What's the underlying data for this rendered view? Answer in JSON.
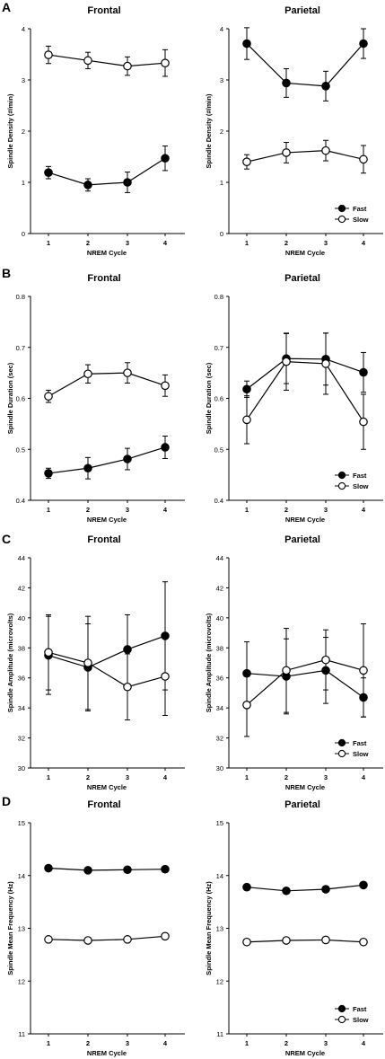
{
  "chart_data": [
    {
      "panel": "A",
      "title": "Frontal",
      "type": "line",
      "xlabel": "NREM Cycle",
      "ylabel": "Spindle Density (#/min)",
      "x": [
        "1",
        "2",
        "3",
        "4"
      ],
      "ylim": [
        0,
        4
      ],
      "yticks": [
        "0",
        "1",
        "2",
        "3",
        "4"
      ],
      "series": [
        {
          "name": "Fast",
          "marker": "filled",
          "values": [
            1.19,
            0.95,
            1.0,
            1.47
          ],
          "errors": [
            0.12,
            0.12,
            0.2,
            0.24
          ]
        },
        {
          "name": "Slow",
          "marker": "open",
          "values": [
            3.49,
            3.38,
            3.27,
            3.33
          ],
          "errors": [
            0.17,
            0.16,
            0.18,
            0.26
          ]
        }
      ]
    },
    {
      "panel": "A2",
      "title": "Parietal",
      "type": "line",
      "xlabel": "NREM Cycle",
      "ylabel": "Spindle Density (#/min)",
      "x": [
        "1",
        "2",
        "3",
        "4"
      ],
      "ylim": [
        0,
        4
      ],
      "yticks": [
        "0",
        "1",
        "2",
        "3",
        "4"
      ],
      "legend": "bottom-right",
      "series": [
        {
          "name": "Fast",
          "marker": "filled",
          "values": [
            3.71,
            2.94,
            2.88,
            3.71
          ],
          "errors": [
            0.31,
            0.28,
            0.29,
            0.29
          ]
        },
        {
          "name": "Slow",
          "marker": "open",
          "values": [
            1.4,
            1.58,
            1.62,
            1.45
          ],
          "errors": [
            0.14,
            0.2,
            0.2,
            0.27
          ]
        }
      ]
    },
    {
      "panel": "B",
      "title": "Frontal",
      "type": "line",
      "xlabel": "NREM Cycle",
      "ylabel": "Spindle Duration (sec)",
      "x": [
        "1",
        "2",
        "3",
        "4"
      ],
      "ylim": [
        0.4,
        0.8
      ],
      "yticks": [
        "0.4",
        "0.5",
        "0.6",
        "0.7",
        "0.8"
      ],
      "series": [
        {
          "name": "Fast",
          "marker": "filled",
          "values": [
            0.453,
            0.463,
            0.481,
            0.504
          ],
          "errors": [
            0.01,
            0.021,
            0.021,
            0.022
          ]
        },
        {
          "name": "Slow",
          "marker": "open",
          "values": [
            0.604,
            0.648,
            0.65,
            0.625
          ],
          "errors": [
            0.012,
            0.018,
            0.02,
            0.021
          ]
        }
      ]
    },
    {
      "panel": "B2",
      "title": "Parietal",
      "type": "line",
      "xlabel": "NREM Cycle",
      "ylabel": "Spindle Duration (sec)",
      "x": [
        "1",
        "2",
        "3",
        "4"
      ],
      "ylim": [
        0.4,
        0.8
      ],
      "yticks": [
        "0.4",
        "0.5",
        "0.6",
        "0.7",
        "0.8"
      ],
      "legend": "bottom-right",
      "series": [
        {
          "name": "Fast",
          "marker": "filled",
          "values": [
            0.618,
            0.678,
            0.677,
            0.651
          ],
          "errors": [
            0.016,
            0.049,
            0.051,
            0.039
          ]
        },
        {
          "name": "Slow",
          "marker": "open",
          "values": [
            0.558,
            0.672,
            0.668,
            0.554
          ],
          "errors": [
            0.047,
            0.056,
            0.06,
            0.054
          ]
        }
      ]
    },
    {
      "panel": "C",
      "title": "Frontal",
      "type": "line",
      "xlabel": "NREM Cycle",
      "ylabel": "Spindle Amplitude (microvolts)",
      "x": [
        "1",
        "2",
        "3",
        "4"
      ],
      "ylim": [
        30,
        44
      ],
      "yticks": [
        "30",
        "32",
        "34",
        "36",
        "38",
        "40",
        "42",
        "44"
      ],
      "series": [
        {
          "name": "Fast",
          "marker": "filled",
          "values": [
            37.5,
            36.7,
            37.9,
            38.8
          ],
          "errors": [
            2.6,
            2.9,
            2.3,
            3.6
          ]
        },
        {
          "name": "Slow",
          "marker": "open",
          "values": [
            37.7,
            37.0,
            35.4,
            36.1
          ],
          "errors": [
            2.5,
            3.1,
            2.2,
            2.6
          ]
        }
      ]
    },
    {
      "panel": "C2",
      "title": "Parietal",
      "type": "line",
      "xlabel": "NREM Cycle",
      "ylabel": "Spindle Amplitude (microvolts)",
      "x": [
        "1",
        "2",
        "3",
        "4"
      ],
      "ylim": [
        30,
        44
      ],
      "yticks": [
        "30",
        "32",
        "34",
        "36",
        "38",
        "40",
        "42",
        "44"
      ],
      "legend": "bottom-right",
      "series": [
        {
          "name": "Fast",
          "marker": "filled",
          "values": [
            36.3,
            36.1,
            36.5,
            34.7
          ],
          "errors": [
            2.1,
            2.5,
            2.2,
            1.3
          ]
        },
        {
          "name": "Slow",
          "marker": "open",
          "values": [
            34.2,
            36.5,
            37.2,
            36.5
          ],
          "errors": [
            2.1,
            2.8,
            2.0,
            3.1
          ]
        }
      ]
    },
    {
      "panel": "D",
      "title": "Frontal",
      "type": "line",
      "xlabel": "NREM Cycle",
      "ylabel": "Spindle Mean Frequency (Hz)",
      "x": [
        "1",
        "2",
        "3",
        "4"
      ],
      "ylim": [
        11,
        15
      ],
      "yticks": [
        "11",
        "12",
        "13",
        "14",
        "15"
      ],
      "series": [
        {
          "name": "Fast",
          "marker": "filled",
          "values": [
            14.14,
            14.1,
            14.11,
            14.12
          ],
          "errors": [
            0,
            0,
            0,
            0
          ]
        },
        {
          "name": "Slow",
          "marker": "open",
          "values": [
            12.79,
            12.77,
            12.79,
            12.85
          ],
          "errors": [
            0,
            0,
            0,
            0
          ]
        }
      ]
    },
    {
      "panel": "D2",
      "title": "Parietal",
      "type": "line",
      "xlabel": "NREM Cycle",
      "ylabel": "Spindle Mean Frequency (Hz)",
      "x": [
        "1",
        "2",
        "3",
        "4"
      ],
      "ylim": [
        11,
        15
      ],
      "yticks": [
        "11",
        "12",
        "13",
        "14",
        "15"
      ],
      "legend": "bottom-right",
      "series": [
        {
          "name": "Fast",
          "marker": "filled",
          "values": [
            13.78,
            13.71,
            13.74,
            13.82
          ],
          "errors": [
            0,
            0,
            0,
            0
          ]
        },
        {
          "name": "Slow",
          "marker": "open",
          "values": [
            12.74,
            12.77,
            12.78,
            12.74
          ],
          "errors": [
            0,
            0,
            0,
            0
          ]
        }
      ]
    }
  ],
  "panel_letters": [
    "A",
    "B",
    "C",
    "D"
  ]
}
